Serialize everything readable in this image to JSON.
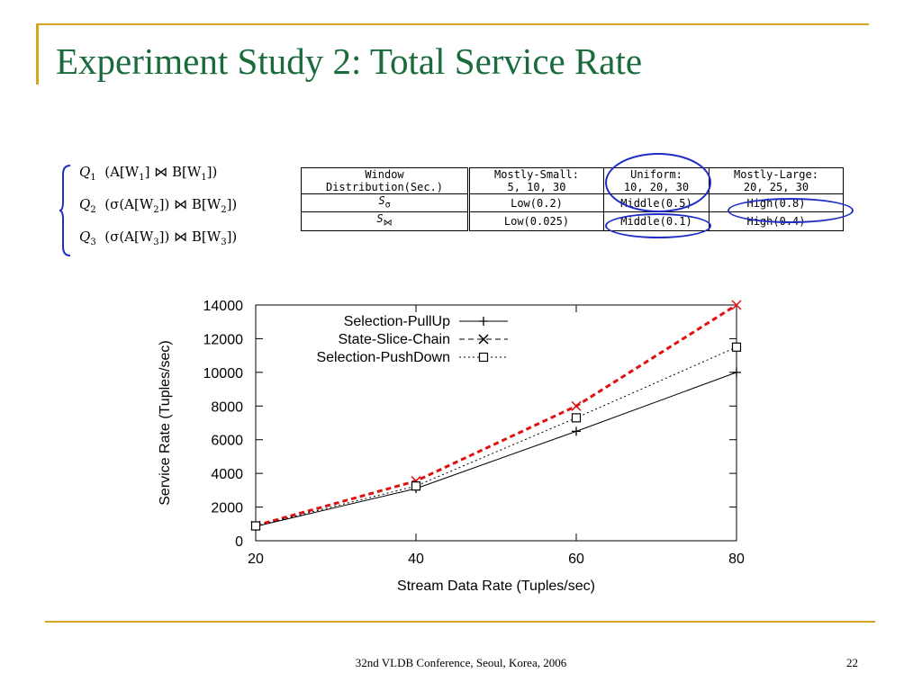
{
  "title": "Experiment Study 2: Total Service Rate",
  "queries": [
    {
      "label": "Q",
      "index": "1",
      "expr_a": "(A[W",
      "expr_b": "] ⋈ B[W",
      "expr_c": "])",
      "w": "1"
    },
    {
      "label": "Q",
      "index": "2",
      "expr_a": "(σ(A[W",
      "expr_b": "]) ⋈ B[W",
      "expr_c": "])",
      "w": "2"
    },
    {
      "label": "Q",
      "index": "3",
      "expr_a": "(σ(A[W",
      "expr_b": "]) ⋈ B[W",
      "expr_c": "])",
      "w": "3"
    }
  ],
  "table": {
    "header": {
      "c1": [
        "Window",
        "Distribution(Sec.)"
      ],
      "c2": [
        "Mostly-Small:",
        "5, 10, 30"
      ],
      "c3": [
        "Uniform:",
        "10, 20, 30"
      ],
      "c4": [
        "Mostly-Large:",
        "20, 25, 30"
      ]
    },
    "row1": {
      "label_main": "S",
      "label_sub": "σ",
      "c2": "Low(0.2)",
      "c3": "Middle(0.5)",
      "c4": "High(0.8)"
    },
    "row2": {
      "label_main": "S",
      "label_sub": "⋈",
      "c2": "Low(0.025)",
      "c3": "Middle(0.1)",
      "c4": "High(0.4)"
    }
  },
  "annotation_color": "#1f2dc4",
  "chart_data": {
    "type": "line",
    "xlabel": "Stream Data Rate (Tuples/sec)",
    "ylabel": "Service Rate (Tuples/sec)",
    "x": [
      20,
      40,
      60,
      80
    ],
    "xlim": [
      20,
      80
    ],
    "ylim": [
      0,
      14000
    ],
    "xticks": [
      "20",
      "40",
      "60",
      "80"
    ],
    "yticks": [
      "0",
      "2000",
      "4000",
      "6000",
      "8000",
      "10000",
      "12000",
      "14000"
    ],
    "legend_position": "top-left",
    "grid": false,
    "series": [
      {
        "name": "Selection-PullUp",
        "values": [
          850,
          3100,
          6500,
          10000
        ],
        "marker": "plus",
        "dash": "solid",
        "color": "#000000"
      },
      {
        "name": "State-Slice-Chain",
        "values": [
          900,
          3550,
          8000,
          14000
        ],
        "marker": "x",
        "dash": "dashed",
        "color": "#e01010",
        "highlight": true
      },
      {
        "name": "Selection-PushDown",
        "values": [
          880,
          3250,
          7300,
          11500
        ],
        "marker": "square",
        "dash": "dotted",
        "color": "#000000"
      }
    ]
  },
  "footer": "32nd VLDB Conference, Seoul, Korea, 2006",
  "page_number": "22"
}
